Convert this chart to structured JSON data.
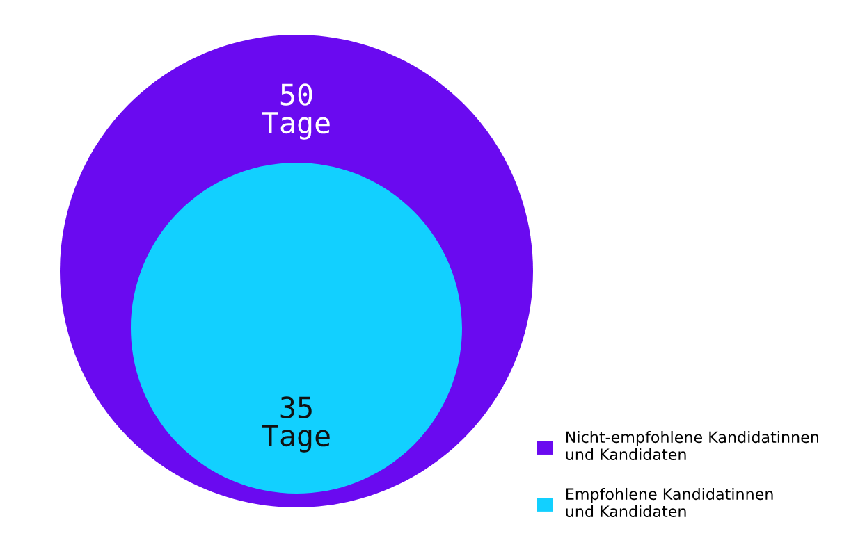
{
  "chart_data": {
    "type": "other",
    "categories": [
      "Nicht-empfohlene Kandidatinnen\nund Kandidaten",
      "Empfohlene Kandidatinnen\nund Kandidaten"
    ],
    "values": [
      50,
      35
    ],
    "value_labels": [
      "50\nTage",
      "35\nTage"
    ],
    "colors": [
      "#6a0af0",
      "#12d0ff"
    ]
  }
}
